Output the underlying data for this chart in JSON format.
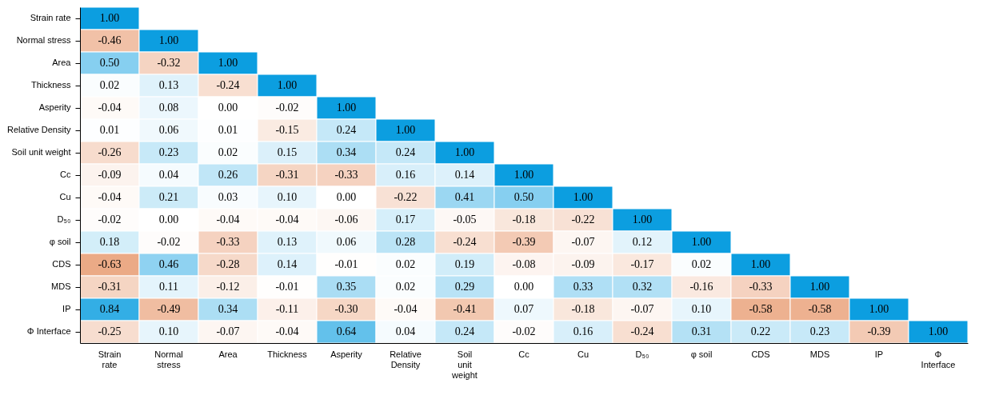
{
  "chart_data": {
    "type": "heatmap",
    "data_labels": true,
    "categories": [
      "Strain rate",
      "Normal stress",
      "Area",
      "Thickness",
      "Asperity",
      "Relative Density",
      "Soil unit weight",
      "Cc",
      "Cu",
      "D₅₀",
      "φ soil",
      "CDS",
      "MDS",
      "IP",
      "Φ Interface"
    ],
    "y_categories": [
      "Strain rate",
      "Normal stress",
      "Area",
      "Thickness",
      "Asperity",
      "Relative Density",
      "Soil unit weight",
      "Cc",
      "Cu",
      "D₅₀",
      "φ soil",
      "CDS",
      "MDS",
      "IP",
      "Φ Interface"
    ],
    "cells": [
      [
        1.0,
        null,
        null,
        null,
        null,
        null,
        null,
        null,
        null,
        null,
        null,
        null,
        null,
        null,
        null
      ],
      [
        -0.46,
        1.0,
        null,
        null,
        null,
        null,
        null,
        null,
        null,
        null,
        null,
        null,
        null,
        null,
        null
      ],
      [
        0.5,
        -0.32,
        1.0,
        null,
        null,
        null,
        null,
        null,
        null,
        null,
        null,
        null,
        null,
        null,
        null
      ],
      [
        0.02,
        0.13,
        -0.24,
        1.0,
        null,
        null,
        null,
        null,
        null,
        null,
        null,
        null,
        null,
        null,
        null
      ],
      [
        -0.04,
        0.08,
        0.0,
        -0.02,
        1.0,
        null,
        null,
        null,
        null,
        null,
        null,
        null,
        null,
        null,
        null
      ],
      [
        0.01,
        0.06,
        0.01,
        -0.15,
        0.24,
        1.0,
        null,
        null,
        null,
        null,
        null,
        null,
        null,
        null,
        null
      ],
      [
        -0.26,
        0.23,
        0.02,
        0.15,
        0.34,
        0.24,
        1.0,
        null,
        null,
        null,
        null,
        null,
        null,
        null,
        null
      ],
      [
        -0.09,
        0.04,
        0.26,
        -0.31,
        -0.33,
        0.16,
        0.14,
        1.0,
        null,
        null,
        null,
        null,
        null,
        null,
        null
      ],
      [
        -0.04,
        0.21,
        0.03,
        0.1,
        0.0,
        -0.22,
        0.41,
        0.5,
        1.0,
        null,
        null,
        null,
        null,
        null,
        null
      ],
      [
        -0.02,
        0.0,
        -0.04,
        -0.04,
        -0.06,
        0.17,
        -0.05,
        -0.18,
        -0.22,
        1.0,
        null,
        null,
        null,
        null,
        null
      ],
      [
        0.18,
        -0.02,
        -0.33,
        0.13,
        0.06,
        0.28,
        -0.24,
        -0.39,
        -0.07,
        0.12,
        1.0,
        null,
        null,
        null,
        null
      ],
      [
        -0.63,
        0.46,
        -0.28,
        0.14,
        -0.01,
        0.02,
        0.19,
        -0.08,
        -0.09,
        -0.17,
        0.02,
        1.0,
        null,
        null,
        null
      ],
      [
        -0.31,
        0.11,
        -0.12,
        -0.01,
        0.35,
        0.02,
        0.29,
        0.0,
        0.33,
        0.32,
        -0.16,
        -0.33,
        1.0,
        null,
        null
      ],
      [
        0.84,
        -0.49,
        0.34,
        -0.11,
        -0.3,
        -0.04,
        -0.41,
        0.07,
        -0.18,
        -0.07,
        0.1,
        -0.58,
        -0.58,
        1.0,
        null
      ],
      [
        -0.25,
        0.1,
        -0.07,
        -0.04,
        0.64,
        0.04,
        0.24,
        -0.02,
        0.16,
        -0.24,
        0.31,
        0.22,
        0.23,
        -0.39,
        1.0
      ]
    ],
    "cell_labels": [
      [
        "1.00",
        null,
        null,
        null,
        null,
        null,
        null,
        null,
        null,
        null,
        null,
        null,
        null,
        null,
        null
      ],
      [
        "-0.46",
        "1.00",
        null,
        null,
        null,
        null,
        null,
        null,
        null,
        null,
        null,
        null,
        null,
        null,
        null
      ],
      [
        "0.50",
        "-0.32",
        "1.00",
        null,
        null,
        null,
        null,
        null,
        null,
        null,
        null,
        null,
        null,
        null,
        null
      ],
      [
        "0.02",
        "0.13",
        "-0.24",
        "1.00",
        null,
        null,
        null,
        null,
        null,
        null,
        null,
        null,
        null,
        null,
        null
      ],
      [
        "-0.04",
        "0.08",
        "0.00",
        "-0.02",
        "1.00",
        null,
        null,
        null,
        null,
        null,
        null,
        null,
        null,
        null,
        null
      ],
      [
        "0.01",
        "0.06",
        "0.01",
        "-0.15",
        "0.24",
        "1.00",
        null,
        null,
        null,
        null,
        null,
        null,
        null,
        null,
        null
      ],
      [
        "-0.26",
        "0.23",
        "0.02",
        "0.15",
        "0.34",
        "0.24",
        "1.00",
        null,
        null,
        null,
        null,
        null,
        null,
        null,
        null
      ],
      [
        "-0.09",
        "0.04",
        "0.26",
        "-0.31",
        "-0.33",
        "0.16",
        "0.14",
        "1.00",
        null,
        null,
        null,
        null,
        null,
        null,
        null
      ],
      [
        "-0.04",
        "0.21",
        "0.03",
        "0.10",
        "0.00",
        "-0.22",
        "0.41",
        "0.50",
        "1.00",
        null,
        null,
        null,
        null,
        null,
        null
      ],
      [
        "-0.02",
        "0.00",
        "-0.04",
        "-0.04",
        "-0.06",
        "0.17",
        "-0.05",
        "-0.18",
        "-0.22",
        "1.00",
        null,
        null,
        null,
        null,
        null
      ],
      [
        "0.18",
        "-0.02",
        "-0.33",
        "0.13",
        "0.06",
        "0.28",
        "-0.24",
        "-0.39",
        "-0.07",
        "0.12",
        "1.00",
        null,
        null,
        null,
        null
      ],
      [
        "-0.63",
        "0.46",
        "-0.28",
        "0.14",
        "-0.01",
        "0.02",
        "0.19",
        "-0.08",
        "-0.09",
        "-0.17",
        "0.02",
        "1.00",
        null,
        null,
        null
      ],
      [
        "-0.31",
        "0.11",
        "-0.12",
        "-0.01",
        "0.35",
        "0.02",
        "0.29",
        "0.00",
        "0.33",
        "0.32",
        "-0.16",
        "-0.33",
        "1.00",
        null,
        null
      ],
      [
        "0.84",
        "-0.49",
        "0.34",
        "-0.11",
        "-0.30",
        "-0.04",
        "-0.41",
        "0.07",
        "-0.18",
        "-0.07",
        "0.10",
        "-0.58",
        "-0.58",
        "1.00",
        null
      ],
      [
        "-0.25",
        "0.10",
        "-0.07",
        "-0.04",
        "0.64",
        "0.04",
        "0.24",
        "-0.02",
        "0.16",
        "-0.24",
        "0.31",
        "0.22",
        "0.23",
        "-0.39",
        "1.00"
      ]
    ]
  }
}
